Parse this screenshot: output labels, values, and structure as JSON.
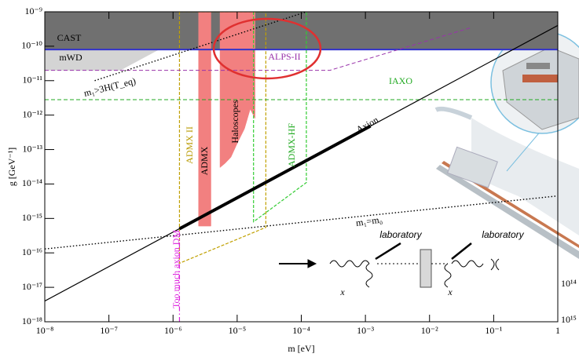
{
  "chart_data": {
    "type": "exclusion",
    "xlabel": "m [eV]",
    "ylabel": "g [GeV⁻¹]",
    "log_x": true,
    "log_y": true,
    "xlim": [
      1e-08,
      1
    ],
    "ylim": [
      1e-18,
      1e-09
    ],
    "xticks": [
      {
        "value": 1e-08,
        "label": "10⁻⁸"
      },
      {
        "value": 1e-07,
        "label": "10⁻⁷"
      },
      {
        "value": 1e-06,
        "label": "10⁻⁶"
      },
      {
        "value": 1e-05,
        "label": "10⁻⁵"
      },
      {
        "value": 0.0001,
        "label": "10⁻⁴"
      },
      {
        "value": 0.001,
        "label": "10⁻³"
      },
      {
        "value": 0.01,
        "label": "10⁻²"
      },
      {
        "value": 0.1,
        "label": "10⁻¹"
      },
      1
    ],
    "yticks": [
      {
        "value": 1e-18,
        "label": "10⁻¹⁸"
      },
      {
        "value": 1e-17,
        "label": "10⁻¹⁷"
      },
      {
        "value": 1e-16,
        "label": "10⁻¹⁶"
      },
      {
        "value": 1e-15,
        "label": "10⁻¹⁵"
      },
      {
        "value": 1e-14,
        "label": "10⁻¹⁴"
      },
      {
        "value": 1e-13,
        "label": "10⁻¹³"
      },
      {
        "value": 1e-12,
        "label": "10⁻¹²"
      },
      {
        "value": 1e-11,
        "label": "10⁻¹¹"
      },
      {
        "value": 1e-10,
        "label": "10⁻¹⁰"
      },
      {
        "value": 1e-09,
        "label": "10⁻⁹"
      }
    ],
    "regions": [
      {
        "name": "CAST",
        "color": "#707070",
        "fill": true,
        "x": [
          1e-08,
          1,
          1,
          1e-08
        ],
        "y": [
          8e-11,
          8e-11,
          1e-09,
          1e-09
        ]
      },
      {
        "name": "mWD",
        "color": "#d4d4d4",
        "fill": true,
        "x": [
          1e-08,
          6e-07,
          1.5e-07,
          1e-08
        ],
        "y": [
          8e-11,
          8e-11,
          2e-11,
          2e-11
        ]
      },
      {
        "name": "ADMX",
        "color": "#f28080",
        "fill": true,
        "x": [
          2.5e-06,
          3.9e-06,
          3.9e-06,
          2.5e-06
        ],
        "y": [
          1e-09,
          1e-09,
          6e-16,
          6e-16
        ]
      },
      {
        "name": "Haloscopes",
        "color": "#f28080",
        "fill": true,
        "x": [
          5.4e-06,
          1.9e-05,
          1.9e-05,
          1.6e-05,
          1.3e-05,
          1e-05,
          8e-06,
          6.5e-06,
          5.4e-06
        ],
        "y": [
          1e-09,
          1e-09,
          8e-13,
          1.5e-12,
          4e-13,
          1.5e-13,
          6e-14,
          4e-14,
          3e-14
        ]
      },
      {
        "name": "ADMX II",
        "color": "#c0a000",
        "fill": false,
        "x": [
          1.26e-06,
          1.26e-06,
          2.8e-05,
          2.8e-05
        ],
        "y": [
          1e-09,
          5e-17,
          5.5e-16,
          1e-09
        ]
      },
      {
        "name": "ADMX-HF",
        "color": "#33cc33",
        "fill": false,
        "x": [
          1.8e-05,
          1.8e-05,
          0.00012,
          0.00012
        ],
        "y": [
          1e-09,
          8e-16,
          1.1e-14,
          1e-09
        ]
      }
    ],
    "lines": [
      {
        "color": "#3333cc",
        "style": "solid",
        "width": 2,
        "x": [
          1e-08,
          1
        ],
        "y": [
          8e-11,
          8e-11
        ]
      },
      {
        "name": "IAXO",
        "color": "#22aa22",
        "style": "dashed",
        "width": 1,
        "x": [
          1e-08,
          1
        ],
        "y": [
          2.8e-12,
          2.8e-12
        ]
      },
      {
        "name": "ALPS-II",
        "color": "#9933aa",
        "style": "dashed",
        "width": 1,
        "x": [
          1e-08,
          0.00028,
          0.045
        ],
        "y": [
          2e-11,
          2e-11,
          3.5e-10
        ]
      },
      {
        "name": "m₁>3H(T_eq)",
        "color": "#000000",
        "style": "dotted",
        "width": 1.4,
        "x": [
          6e-08,
          0.00012
        ],
        "y": [
          1e-11,
          1e-09
        ]
      },
      {
        "name": "Axion",
        "color": "#000000",
        "style": "solid",
        "width": 1.2,
        "x": [
          1e-08,
          1
        ],
        "y": [
          4e-18,
          4e-10
        ]
      },
      {
        "name": "m₁=m₀",
        "color": "#000000",
        "style": "dotted",
        "width": 1.4,
        "x": [
          1e-08,
          1
        ],
        "y": [
          1.3e-16,
          4.5e-15
        ]
      },
      {
        "name": "Too much axion DM",
        "color": "#dd22dd",
        "style": "dashdot",
        "width": 1.2,
        "x": [
          1.26e-06,
          1.26e-06
        ],
        "y": [
          1e-18,
          4e-16
        ]
      },
      {
        "color": "#000000",
        "style": "solid",
        "width": 4,
        "x": [
          1.26e-06,
          0.0012
        ],
        "y": [
          5e-16,
          4.8e-13
        ]
      }
    ],
    "inset_labels": [
      "laboratory",
      "laboratory",
      "x",
      "x",
      "10¹⁴",
      "10¹⁵"
    ]
  }
}
